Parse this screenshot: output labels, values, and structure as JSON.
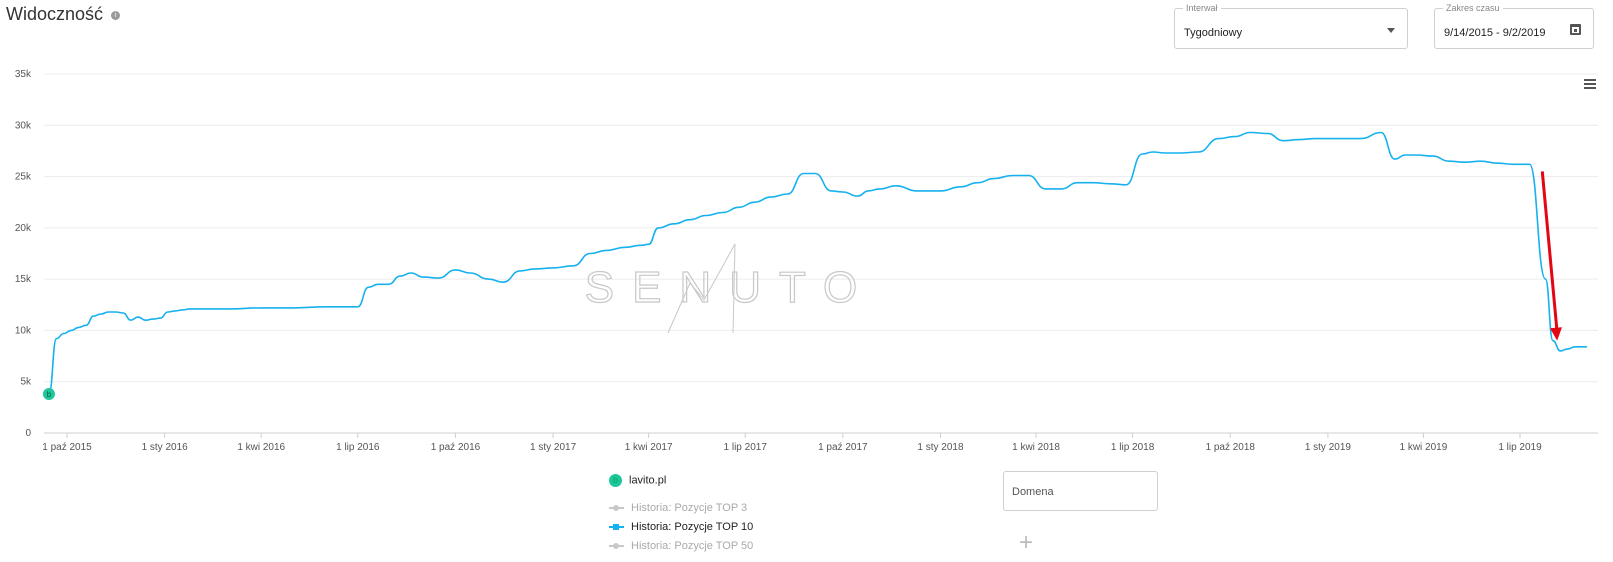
{
  "header": {
    "title": "Widoczność",
    "info_icon": "info-icon"
  },
  "controls": {
    "interval_label": "Interwał",
    "interval_value": "Tygodniowy",
    "range_label": "Zakres czasu",
    "range_value": "9/14/2015 - 9/2/2019",
    "menu_icon": "hamburger-menu-icon",
    "calendar_icon": "calendar-icon",
    "dropdown_icon": "chevron-down-icon"
  },
  "chart_data": {
    "type": "line",
    "title": "",
    "xlabel": "",
    "ylabel": "",
    "ylim": [
      0,
      35000
    ],
    "y_ticks": [
      0,
      5000,
      10000,
      15000,
      20000,
      25000,
      30000,
      35000
    ],
    "y_tick_labels": [
      "0",
      "5k",
      "10k",
      "15k",
      "20k",
      "25k",
      "30k",
      "35k"
    ],
    "x_range": [
      "2015-09-14",
      "2019-09-02"
    ],
    "x_ticks": [
      "2015-10-01",
      "2016-01-01",
      "2016-04-01",
      "2016-07-01",
      "2016-10-01",
      "2017-01-01",
      "2017-04-01",
      "2017-07-01",
      "2017-10-01",
      "2018-01-01",
      "2018-04-01",
      "2018-07-01",
      "2018-10-01",
      "2019-01-01",
      "2019-04-01",
      "2019-07-01"
    ],
    "x_tick_labels": [
      "1 paź 2015",
      "1 sty 2016",
      "1 kwi 2016",
      "1 lip 2016",
      "1 paź 2016",
      "1 sty 2017",
      "1 kwi 2017",
      "1 lip 2017",
      "1 paź 2017",
      "1 sty 2018",
      "1 kwi 2018",
      "1 lip 2018",
      "1 paź 2018",
      "1 sty 2019",
      "1 kwi 2019",
      "1 lip 2019"
    ],
    "grid": true,
    "legend_position": "bottom-center",
    "series": [
      {
        "name": "Historia: Pozycje TOP 10",
        "color": "#16b1ee",
        "x": [
          "2015-09-14",
          "2015-09-21",
          "2015-09-28",
          "2015-10-05",
          "2015-10-12",
          "2015-10-19",
          "2015-10-26",
          "2015-11-02",
          "2015-11-09",
          "2015-11-16",
          "2015-11-23",
          "2015-11-30",
          "2015-12-07",
          "2015-12-14",
          "2015-12-21",
          "2015-12-28",
          "2016-01-04",
          "2016-01-11",
          "2016-01-18",
          "2016-01-25",
          "2016-02-01",
          "2016-02-15",
          "2016-03-01",
          "2016-04-01",
          "2016-05-01",
          "2016-06-01",
          "2016-07-01",
          "2016-07-11",
          "2016-07-20",
          "2016-07-30",
          "2016-08-10",
          "2016-08-20",
          "2016-09-01",
          "2016-09-15",
          "2016-10-01",
          "2016-10-15",
          "2016-11-01",
          "2016-11-15",
          "2016-12-01",
          "2016-12-15",
          "2017-01-01",
          "2017-01-20",
          "2017-02-05",
          "2017-02-20",
          "2017-03-10",
          "2017-03-25",
          "2017-04-01",
          "2017-04-10",
          "2017-04-25",
          "2017-05-10",
          "2017-05-25",
          "2017-06-10",
          "2017-06-25",
          "2017-07-10",
          "2017-07-25",
          "2017-08-10",
          "2017-08-25",
          "2017-09-05",
          "2017-09-20",
          "2017-10-01",
          "2017-10-15",
          "2017-10-25",
          "2017-11-05",
          "2017-11-20",
          "2017-12-10",
          "2018-01-01",
          "2018-01-20",
          "2018-02-05",
          "2018-02-20",
          "2018-03-10",
          "2018-03-25",
          "2018-04-10",
          "2018-04-25",
          "2018-05-10",
          "2018-05-25",
          "2018-06-10",
          "2018-06-25",
          "2018-07-10",
          "2018-07-20",
          "2018-08-01",
          "2018-08-15",
          "2018-09-01",
          "2018-09-20",
          "2018-10-05",
          "2018-10-20",
          "2018-11-05",
          "2018-11-20",
          "2018-12-05",
          "2018-12-20",
          "2019-01-10",
          "2019-02-01",
          "2019-02-20",
          "2019-03-05",
          "2019-03-15",
          "2019-03-25",
          "2019-04-10",
          "2019-04-25",
          "2019-05-10",
          "2019-05-25",
          "2019-06-10",
          "2019-06-25",
          "2019-07-10",
          "2019-07-25",
          "2019-08-01",
          "2019-08-08",
          "2019-08-15",
          "2019-08-22",
          "2019-08-29",
          "2019-09-02"
        ],
        "y": [
          3800,
          9200,
          9700,
          10000,
          10300,
          10500,
          11400,
          11600,
          11800,
          11800,
          11700,
          11000,
          11300,
          11000,
          11100,
          11200,
          11800,
          11900,
          12000,
          12100,
          12100,
          12100,
          12100,
          12200,
          12200,
          12300,
          12300,
          14200,
          14500,
          14500,
          15300,
          15600,
          15200,
          15100,
          15900,
          15600,
          15000,
          14700,
          15800,
          16000,
          16100,
          16300,
          17500,
          17800,
          18100,
          18300,
          18400,
          20000,
          20400,
          20800,
          21200,
          21500,
          22000,
          22500,
          23000,
          23300,
          25300,
          25300,
          23600,
          23500,
          23100,
          23600,
          23800,
          24100,
          23600,
          23600,
          24000,
          24400,
          24800,
          25100,
          25100,
          23800,
          23800,
          24400,
          24400,
          24300,
          24200,
          27200,
          27400,
          27300,
          27300,
          27400,
          28700,
          28900,
          29300,
          29200,
          28500,
          28600,
          28700,
          28700,
          28700,
          29300,
          26700,
          27100,
          27100,
          27000,
          26500,
          26400,
          26500,
          26300,
          26200,
          26200,
          15000,
          9000,
          8000,
          8200,
          8400,
          8400,
          8400
        ]
      }
    ],
    "annotations": [
      {
        "type": "flag",
        "label": "b",
        "x": "2015-09-14",
        "y": 3800,
        "color": "#1ec79b"
      },
      {
        "type": "arrow",
        "color": "#e30613",
        "from": {
          "x": "2019-07-22",
          "y": 25500
        },
        "to": {
          "x": "2019-08-05",
          "y": 9000
        }
      }
    ],
    "watermark": "SENUTO"
  },
  "legend": {
    "domain_name": "lavito.pl",
    "domain_color": "#1ec79b",
    "items": [
      {
        "label": "Historia: Pozycje TOP 3",
        "color": "#c8c8c8",
        "active": false
      },
      {
        "label": "Historia: Pozycje TOP 10",
        "color": "#16b1ee",
        "active": true
      },
      {
        "label": "Historia: Pozycje TOP 50",
        "color": "#c8c8c8",
        "active": false
      }
    ]
  },
  "domain_input": {
    "placeholder": "Domena"
  },
  "add_icon": "plus-icon"
}
